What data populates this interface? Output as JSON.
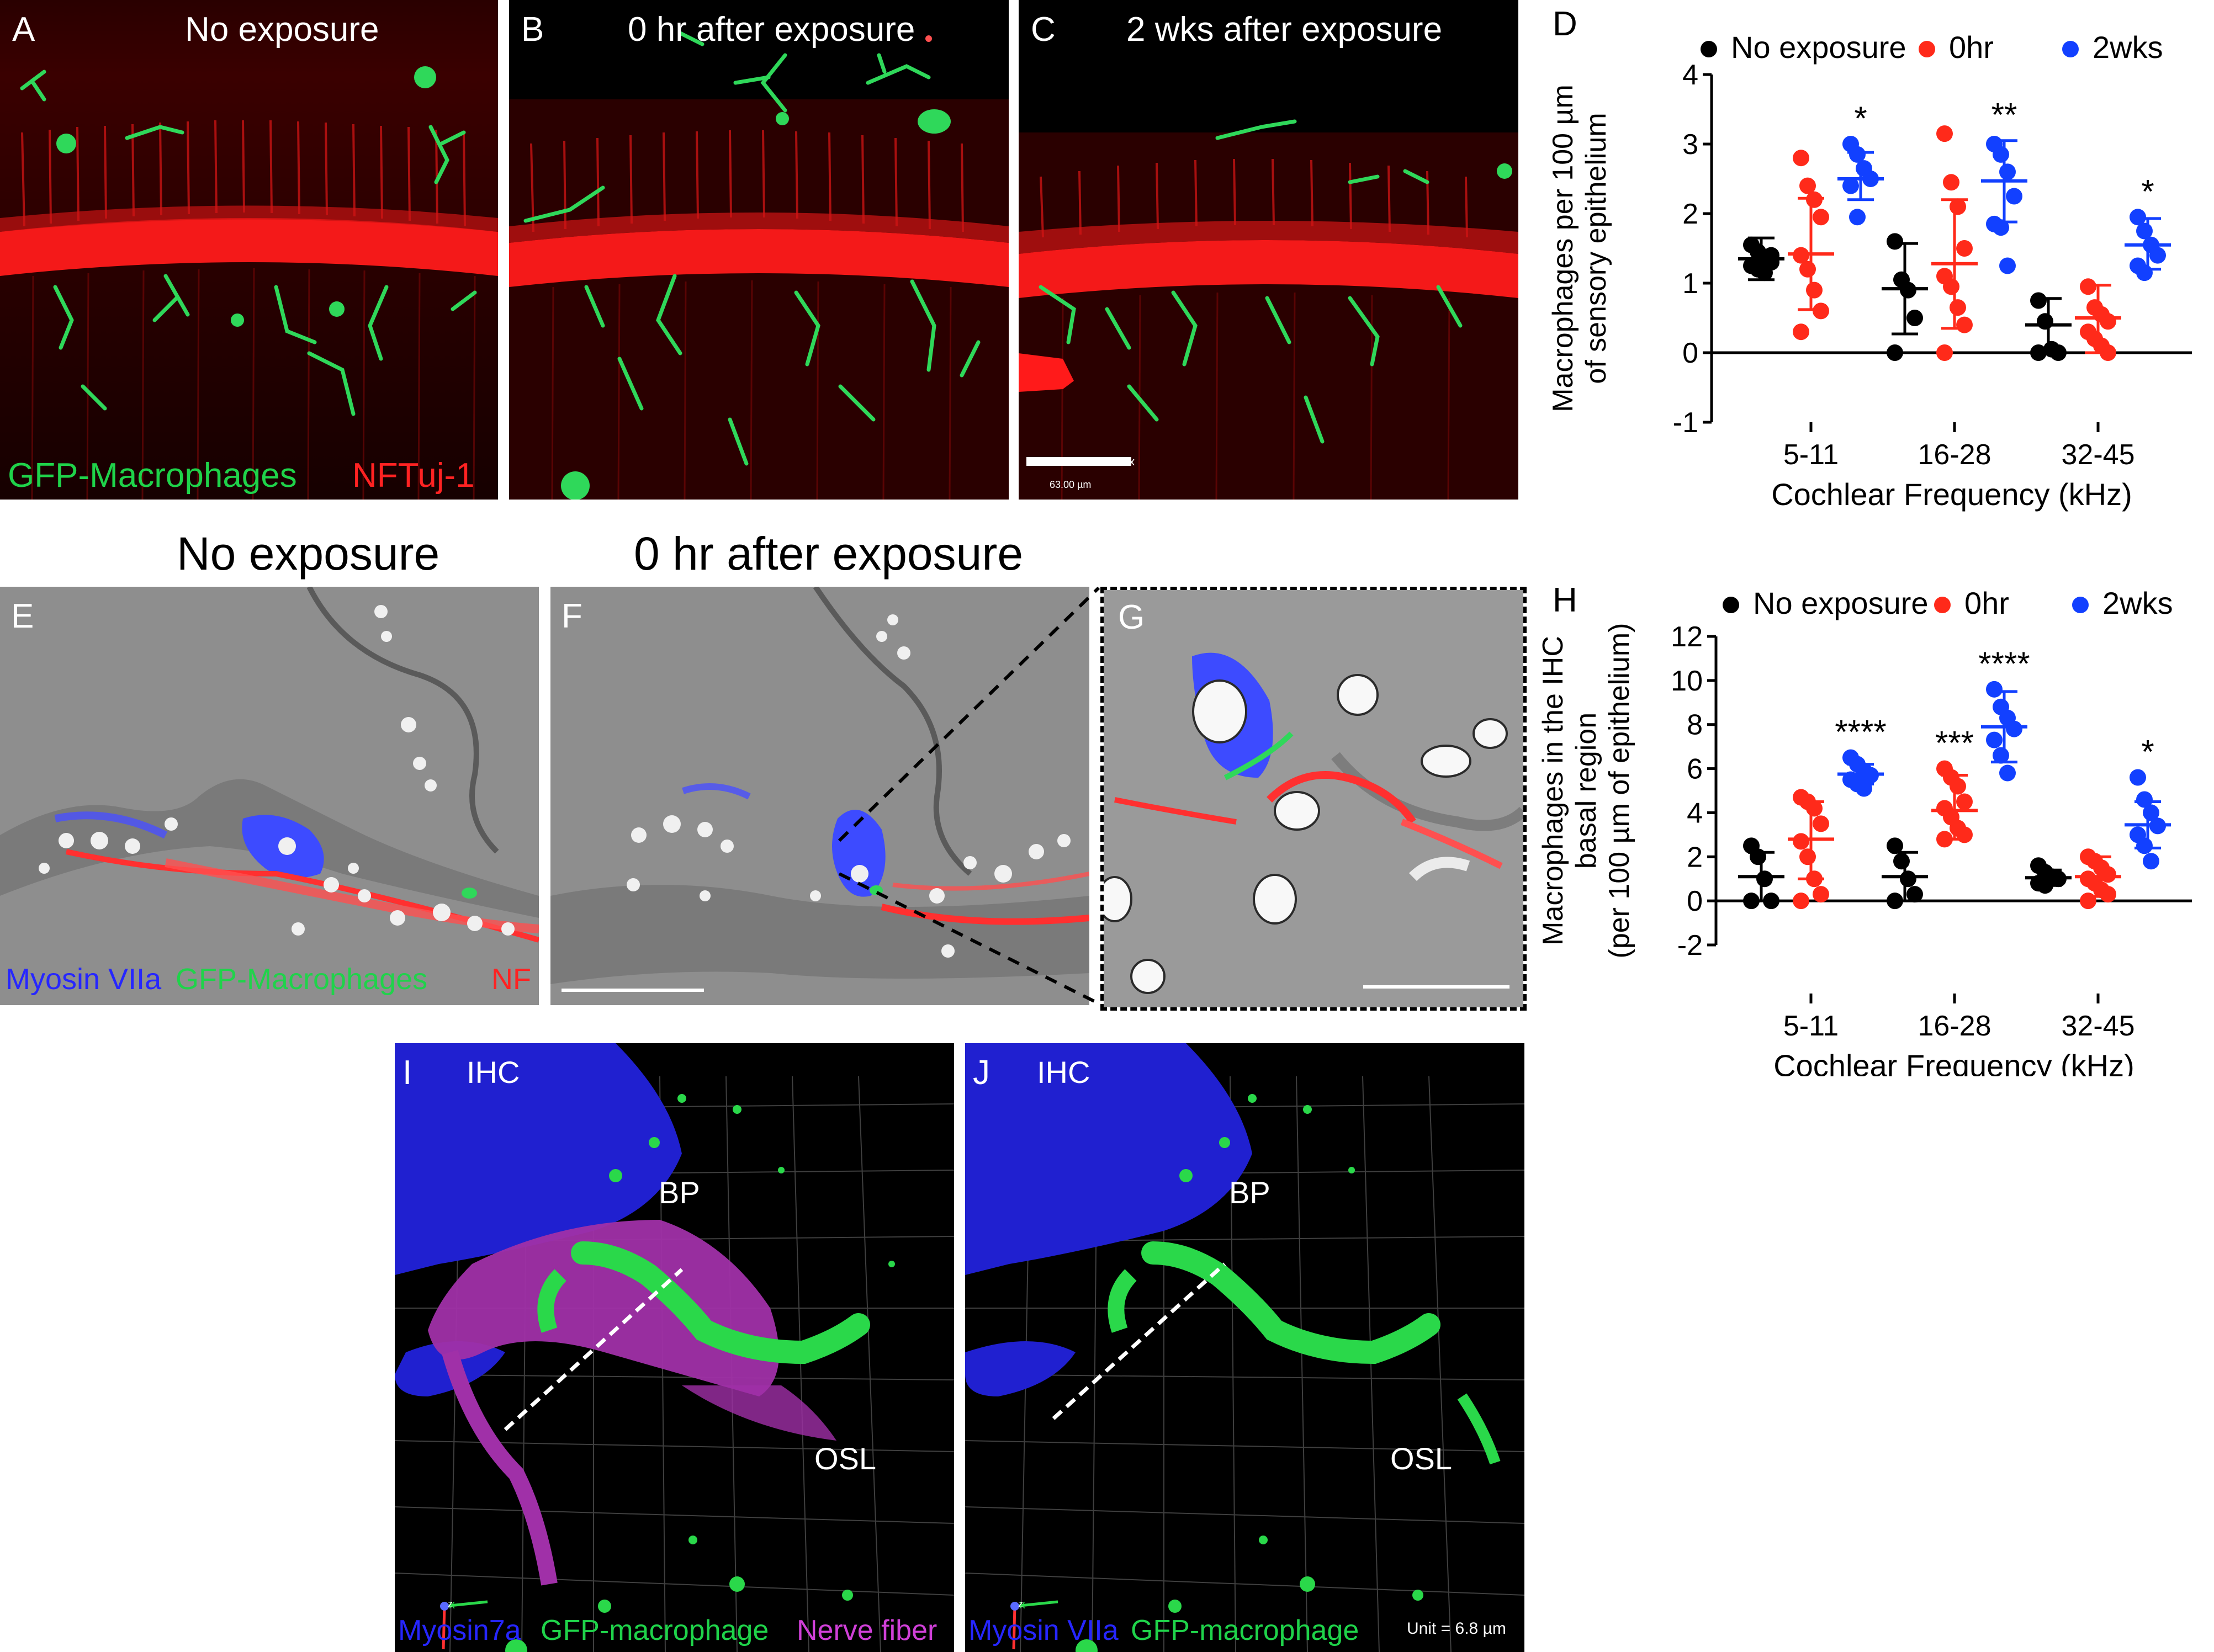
{
  "colors": {
    "no_exposure": "#000000",
    "hr0": "#ff2a1a",
    "wks2": "#1240ff",
    "gfp": "#1fd34a",
    "nf": "#ff1a1a",
    "myosin": "#2626ff",
    "nerve_fiber": "#c43fc8"
  },
  "panelA": {
    "letter": "A",
    "title": "No exposure",
    "caption_gfp": "GFP-Macrophages",
    "caption_nf": "NFTuj-1"
  },
  "panelB": {
    "letter": "B",
    "title": "0 hr after exposure"
  },
  "panelC": {
    "letter": "C",
    "title": "2 wks after exposure",
    "scale_label": "63.00 µm",
    "scale_axis": "x"
  },
  "row2_titles": {
    "left": "No exposure",
    "right": "0 hr after exposure"
  },
  "panelE": {
    "letter": "E",
    "caption_myosin": "Myosin VIIa",
    "caption_gfp": "GFP-Macrophages",
    "caption_nf": "NF"
  },
  "panelF": {
    "letter": "F"
  },
  "panelG": {
    "letter": "G"
  },
  "panelI": {
    "letter": "I",
    "ihc": "IHC",
    "bp": "BP",
    "osl": "OSL",
    "caption_myosin": "Myosin7a",
    "caption_gfp": "GFP-macrophage",
    "caption_nerve": "Nerve fiber",
    "axis_x": "x",
    "axis_z": "z"
  },
  "panelJ": {
    "letter": "J",
    "ihc": "IHC",
    "bp": "BP",
    "osl": "OSL",
    "caption_myosin": "Myosin VIIa",
    "caption_gfp": "GFP-macrophage",
    "unit": "Unit = 6.8 µm",
    "axis_x": "x",
    "axis_z": "z"
  },
  "chart_data": [
    {
      "panel": "D",
      "type": "scatter",
      "legend": [
        "No exposure",
        "0hr",
        "2wks"
      ],
      "legend_placement": "top",
      "categories": [
        "5-11",
        "16-28",
        "32-45"
      ],
      "xlabel": "Cochlear Frequency (kHz)",
      "ylabel_lines": [
        "Macrophages per 100 µm",
        "of sensory epithelium"
      ],
      "ylim": [
        -1,
        4
      ],
      "yticks": [
        "-1",
        "0",
        "1",
        "2",
        "3",
        "4"
      ],
      "grid": false,
      "series": [
        {
          "name": "No exposure",
          "color": "#000000",
          "groups": [
            {
              "points": [
                1.55,
                1.45,
                1.35,
                1.3,
                1.25,
                1.2,
                1.15,
                1.4
              ],
              "mean": 1.35,
              "sd_low": 1.05,
              "sd_high": 1.65
            },
            {
              "points": [
                1.6,
                1.05,
                0.9,
                0.5,
                0.0
              ],
              "mean": 0.92,
              "sd_low": 0.27,
              "sd_high": 1.57
            },
            {
              "points": [
                0.75,
                0.45,
                0.05,
                0.0,
                0.0
              ],
              "mean": 0.4,
              "sd_low": 0.02,
              "sd_high": 0.78
            }
          ]
        },
        {
          "name": "0hr",
          "color": "#ff2a1a",
          "groups": [
            {
              "points": [
                2.8,
                2.4,
                2.2,
                1.95,
                1.4,
                1.2,
                0.9,
                0.6,
                0.3
              ],
              "mean": 1.42,
              "sd_low": 0.62,
              "sd_high": 2.22
            },
            {
              "points": [
                3.15,
                2.45,
                2.1,
                1.5,
                1.1,
                0.95,
                0.65,
                0.4,
                0.0
              ],
              "mean": 1.28,
              "sd_low": 0.35,
              "sd_high": 2.2
            },
            {
              "points": [
                0.95,
                0.65,
                0.55,
                0.45,
                0.3,
                0.2,
                0.1,
                0.0
              ],
              "mean": 0.5,
              "sd_low": 0.0,
              "sd_high": 0.97
            }
          ]
        },
        {
          "name": "2wks",
          "color": "#1240ff",
          "groups": [
            {
              "points": [
                3.0,
                2.85,
                2.65,
                2.5,
                2.4,
                1.95
              ],
              "mean": 2.5,
              "sd_low": 2.2,
              "sd_high": 2.88
            },
            {
              "points": [
                3.0,
                2.85,
                2.6,
                2.25,
                1.85,
                1.8,
                1.25
              ],
              "mean": 2.47,
              "sd_low": 1.88,
              "sd_high": 3.05
            },
            {
              "points": [
                1.95,
                1.75,
                1.55,
                1.4,
                1.25,
                1.15
              ],
              "mean": 1.55,
              "sd_low": 1.2,
              "sd_high": 1.93
            }
          ]
        }
      ],
      "annotations": [
        {
          "category": "5-11",
          "text": "*"
        },
        {
          "category": "16-28",
          "text": "**"
        },
        {
          "category": "32-45",
          "text": "*"
        }
      ]
    },
    {
      "panel": "H",
      "type": "scatter",
      "legend": [
        "No exposure",
        "0hr",
        "2wks"
      ],
      "legend_placement": "top",
      "categories": [
        "5-11",
        "16-28",
        "32-45"
      ],
      "xlabel": "Cochlear Frequency (kHz)",
      "ylabel_lines": [
        "Macrophages in the IHC",
        "basal region",
        "(per 100 µm of epithelium)"
      ],
      "ylim": [
        -2,
        12
      ],
      "yticks": [
        "-2",
        "0",
        "2",
        "4",
        "6",
        "8",
        "10",
        "12"
      ],
      "grid": false,
      "series": [
        {
          "name": "No exposure",
          "color": "#000000",
          "groups": [
            {
              "points": [
                2.5,
                2.0,
                1.0,
                0.0,
                0.0
              ],
              "mean": 1.1,
              "sd_low": 0.0,
              "sd_high": 2.2
            },
            {
              "points": [
                2.5,
                1.8,
                1.0,
                0.3,
                0.0
              ],
              "mean": 1.1,
              "sd_low": 0.0,
              "sd_high": 2.2
            },
            {
              "points": [
                1.6,
                1.3,
                1.1,
                1.0,
                0.8,
                0.7
              ],
              "mean": 1.05,
              "sd_low": 0.7,
              "sd_high": 1.4
            }
          ]
        },
        {
          "name": "0hr",
          "color": "#ff2a1a",
          "groups": [
            {
              "points": [
                4.7,
                4.5,
                4.2,
                3.5,
                2.7,
                2.0,
                1.0,
                0.3,
                0.0
              ],
              "mean": 2.8,
              "sd_low": 1.0,
              "sd_high": 4.5
            },
            {
              "points": [
                6.0,
                5.6,
                5.2,
                4.5,
                4.2,
                3.8,
                3.3,
                3.0,
                2.8
              ],
              "mean": 4.1,
              "sd_low": 2.8,
              "sd_high": 5.7
            },
            {
              "points": [
                2.0,
                1.8,
                1.5,
                1.2,
                1.0,
                0.8,
                0.5,
                0.3,
                0.0
              ],
              "mean": 1.1,
              "sd_low": 0.2,
              "sd_high": 2.0
            }
          ]
        },
        {
          "name": "2wks",
          "color": "#1240ff",
          "groups": [
            {
              "points": [
                6.5,
                6.2,
                5.9,
                5.7,
                5.5,
                5.3,
                5.1
              ],
              "mean": 5.75,
              "sd_low": 5.3,
              "sd_high": 6.2
            },
            {
              "points": [
                9.6,
                8.8,
                8.3,
                7.8,
                7.3,
                6.6,
                5.8
              ],
              "mean": 7.9,
              "sd_low": 6.3,
              "sd_high": 9.5
            },
            {
              "points": [
                5.6,
                4.6,
                4.0,
                3.4,
                3.0,
                2.5,
                1.8
              ],
              "mean": 3.45,
              "sd_low": 2.4,
              "sd_high": 4.5
            }
          ]
        }
      ],
      "annotations": [
        {
          "category": "5-11",
          "series": "2wks",
          "text": "****"
        },
        {
          "category": "16-28",
          "series": "0hr",
          "text": "***"
        },
        {
          "category": "16-28",
          "series": "2wks",
          "text": "****"
        },
        {
          "category": "32-45",
          "series": "2wks",
          "text": "*"
        }
      ]
    }
  ]
}
